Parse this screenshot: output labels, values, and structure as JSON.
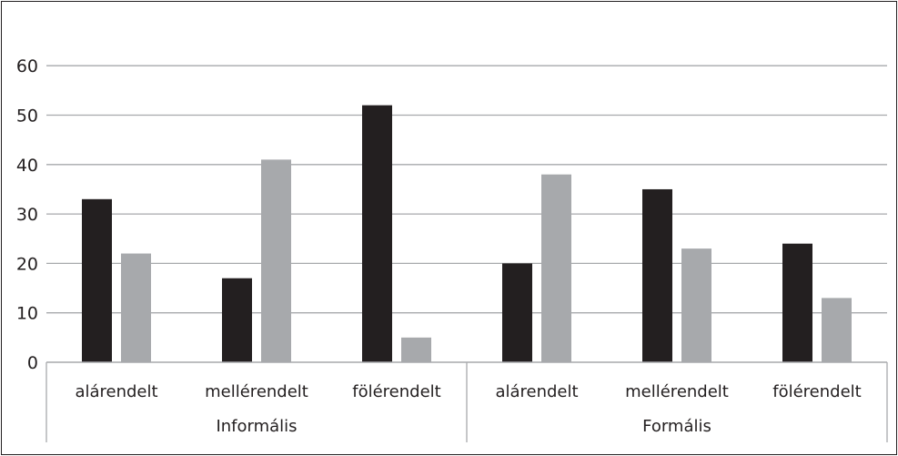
{
  "chart_data": {
    "type": "bar",
    "title": "",
    "xlabel": "",
    "ylabel": "",
    "ylim": [
      0,
      60
    ],
    "yticks": [
      0,
      10,
      20,
      30,
      40,
      50,
      60
    ],
    "grid": true,
    "legend": "none",
    "groups": [
      {
        "label": "Informális",
        "categories": [
          "alárendelt",
          "mellérendelt",
          "fölérendelt"
        ]
      },
      {
        "label": "Formális",
        "categories": [
          "alárendelt",
          "mellérendelt",
          "fölérendelt"
        ]
      }
    ],
    "series": [
      {
        "color": "#231f20",
        "values": [
          33,
          17,
          52,
          20,
          35,
          24
        ]
      },
      {
        "color": "#a7a9ac",
        "values": [
          22,
          41,
          5,
          38,
          23,
          13
        ]
      }
    ]
  }
}
